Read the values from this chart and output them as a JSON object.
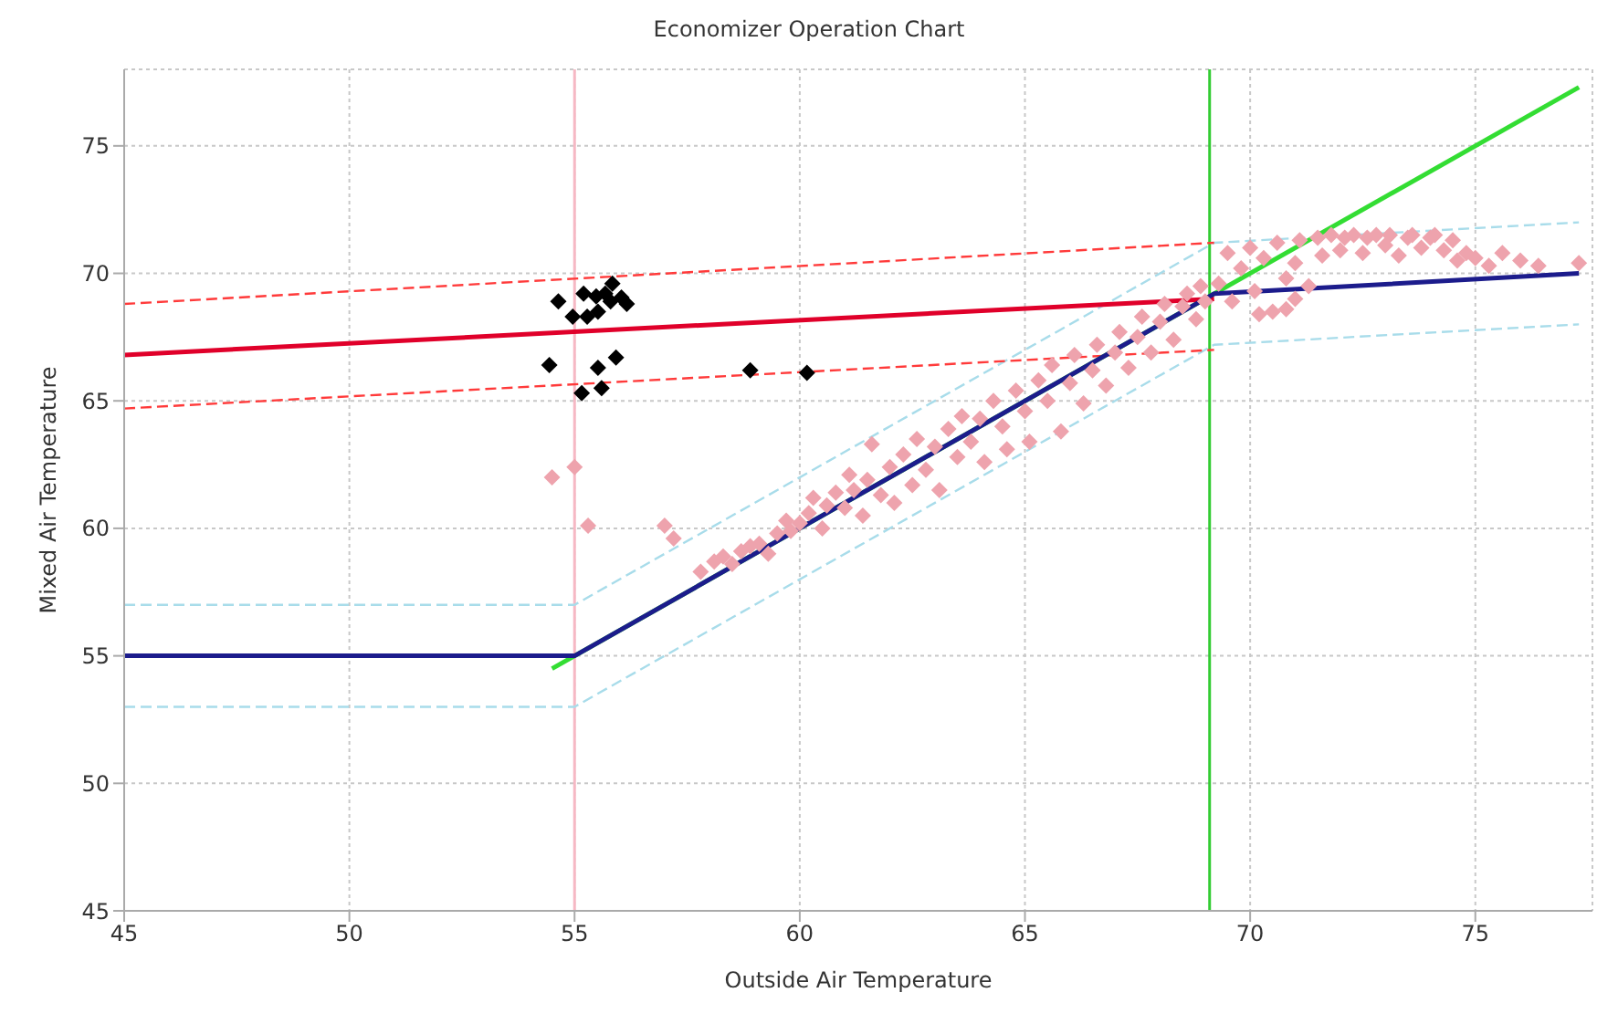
{
  "chart_data": {
    "type": "scatter",
    "title": "Economizer Operation Chart",
    "xlabel": "Outside Air Temperature",
    "ylabel": "Mixed Air Temperature",
    "xlim": [
      45,
      77.6
    ],
    "ylim": [
      45,
      78
    ],
    "xticks": [
      45,
      50,
      55,
      60,
      65,
      70,
      75
    ],
    "yticks": [
      45,
      50,
      55,
      60,
      65,
      70,
      75
    ],
    "grid": true,
    "ref_lines": [
      {
        "axis": "x",
        "value": 55,
        "color": "#f6b8c4"
      },
      {
        "axis": "x",
        "value": 69.1,
        "color": "#33cc33"
      }
    ],
    "series": [
      {
        "type": "line",
        "color": "#a8dcea",
        "line_style": "dashed",
        "marker": "none",
        "x": [
          45,
          55,
          69.2,
          77.3
        ],
        "values": [
          57,
          57,
          71.2,
          72
        ]
      },
      {
        "type": "line",
        "color": "#a8dcea",
        "line_style": "dashed",
        "marker": "none",
        "x": [
          45,
          55,
          69.2,
          77.3
        ],
        "values": [
          53,
          53,
          67.2,
          68
        ]
      },
      {
        "type": "line",
        "color": "#ff3a3a",
        "line_style": "dashed",
        "marker": "none",
        "x": [
          45,
          69.2
        ],
        "values": [
          68.8,
          71.2
        ]
      },
      {
        "type": "line",
        "color": "#ff3a3a",
        "line_style": "dashed",
        "marker": "none",
        "x": [
          45,
          69.2
        ],
        "values": [
          64.7,
          67
        ]
      },
      {
        "type": "scatter",
        "color": "#eea3ad",
        "marker": "diamond",
        "x": [
          54.5,
          55.0,
          55.3,
          57.0,
          57.2,
          57.8,
          58.1,
          58.3,
          58.5,
          58.7,
          58.9,
          59.1,
          59.3,
          59.5,
          59.7,
          59.8,
          60.0,
          60.2,
          60.3,
          60.5,
          60.6,
          60.8,
          61.0,
          61.1,
          61.2,
          61.4,
          61.5,
          61.6,
          61.8,
          62.0,
          62.1,
          62.3,
          62.5,
          62.6,
          62.8,
          63.0,
          63.1,
          63.3,
          63.5,
          63.6,
          63.8,
          64.0,
          64.1,
          64.3,
          64.5,
          64.6,
          64.8,
          65.0,
          65.1,
          65.3,
          65.5,
          65.6,
          65.8,
          66.0,
          66.1,
          66.3,
          66.5,
          66.6,
          66.8,
          67.0,
          67.1,
          67.3,
          67.5,
          67.6,
          67.8,
          68.0,
          68.1,
          68.3,
          68.5,
          68.6,
          68.8,
          68.9,
          69.0,
          69.3,
          69.5,
          69.6,
          69.8,
          70.0,
          70.1,
          70.3,
          70.5,
          70.6,
          70.8,
          71.0,
          71.1,
          71.3,
          71.5,
          71.6,
          71.8,
          72.0,
          72.1,
          72.3,
          72.5,
          72.6,
          72.8,
          73.0,
          73.1,
          73.3,
          73.5,
          73.6,
          73.8,
          74.0,
          74.1,
          74.3,
          74.5,
          74.6,
          74.8,
          75.0,
          75.3,
          75.6,
          76.0,
          76.4,
          77.3,
          70.2,
          70.8,
          71.0
        ],
        "values": [
          62.0,
          62.4,
          60.1,
          60.1,
          59.6,
          58.3,
          58.7,
          58.9,
          58.6,
          59.1,
          59.3,
          59.4,
          59.0,
          59.8,
          60.3,
          59.9,
          60.2,
          60.6,
          61.2,
          60.0,
          60.9,
          61.4,
          60.8,
          62.1,
          61.5,
          60.5,
          61.9,
          63.3,
          61.3,
          62.4,
          61.0,
          62.9,
          61.7,
          63.5,
          62.3,
          63.2,
          61.5,
          63.9,
          62.8,
          64.4,
          63.4,
          64.3,
          62.6,
          65.0,
          64.0,
          63.1,
          65.4,
          64.6,
          63.4,
          65.8,
          65.0,
          66.4,
          63.8,
          65.7,
          66.8,
          64.9,
          66.2,
          67.2,
          65.6,
          66.9,
          67.7,
          66.3,
          67.5,
          68.3,
          66.9,
          68.1,
          68.8,
          67.4,
          68.7,
          69.2,
          68.2,
          69.5,
          68.9,
          69.6,
          70.8,
          68.9,
          70.2,
          71.0,
          69.3,
          70.6,
          68.5,
          71.2,
          69.8,
          70.4,
          71.3,
          69.5,
          71.4,
          70.7,
          71.5,
          70.9,
          71.4,
          71.5,
          70.8,
          71.4,
          71.5,
          71.1,
          71.5,
          70.7,
          71.4,
          71.5,
          71.0,
          71.4,
          71.5,
          70.9,
          71.3,
          70.5,
          70.8,
          70.6,
          70.3,
          70.8,
          70.5,
          70.3,
          70.4,
          68.4,
          68.6,
          69.0
        ]
      },
      {
        "type": "line",
        "color": "#33dd33",
        "line_style": "solid",
        "marker": "none",
        "x": [
          54.5,
          77.3
        ],
        "values": [
          54.5,
          77.3
        ]
      },
      {
        "type": "line",
        "color": "#e0002a",
        "line_style": "solid",
        "marker": "none",
        "x": [
          45,
          69.2
        ],
        "values": [
          66.8,
          69.0
        ]
      },
      {
        "type": "line",
        "color": "#1c1c8c",
        "line_style": "solid",
        "marker": "none",
        "x": [
          45,
          55,
          69.2,
          77.3
        ],
        "values": [
          55,
          55,
          69.2,
          70
        ]
      },
      {
        "type": "scatter",
        "color": "#000000",
        "marker": "diamond",
        "x": [
          54.64,
          54.96,
          55.2,
          55.28,
          55.48,
          55.68,
          55.52,
          55.84,
          55.8,
          56.04,
          56.16,
          54.44,
          55.52,
          55.92,
          55.16,
          55.6,
          58.9,
          60.16
        ],
        "values": [
          68.9,
          68.3,
          69.2,
          68.3,
          69.1,
          69.2,
          68.5,
          69.6,
          68.9,
          69.05,
          68.8,
          66.4,
          66.3,
          66.7,
          65.3,
          65.5,
          66.2,
          66.1
        ]
      }
    ]
  }
}
